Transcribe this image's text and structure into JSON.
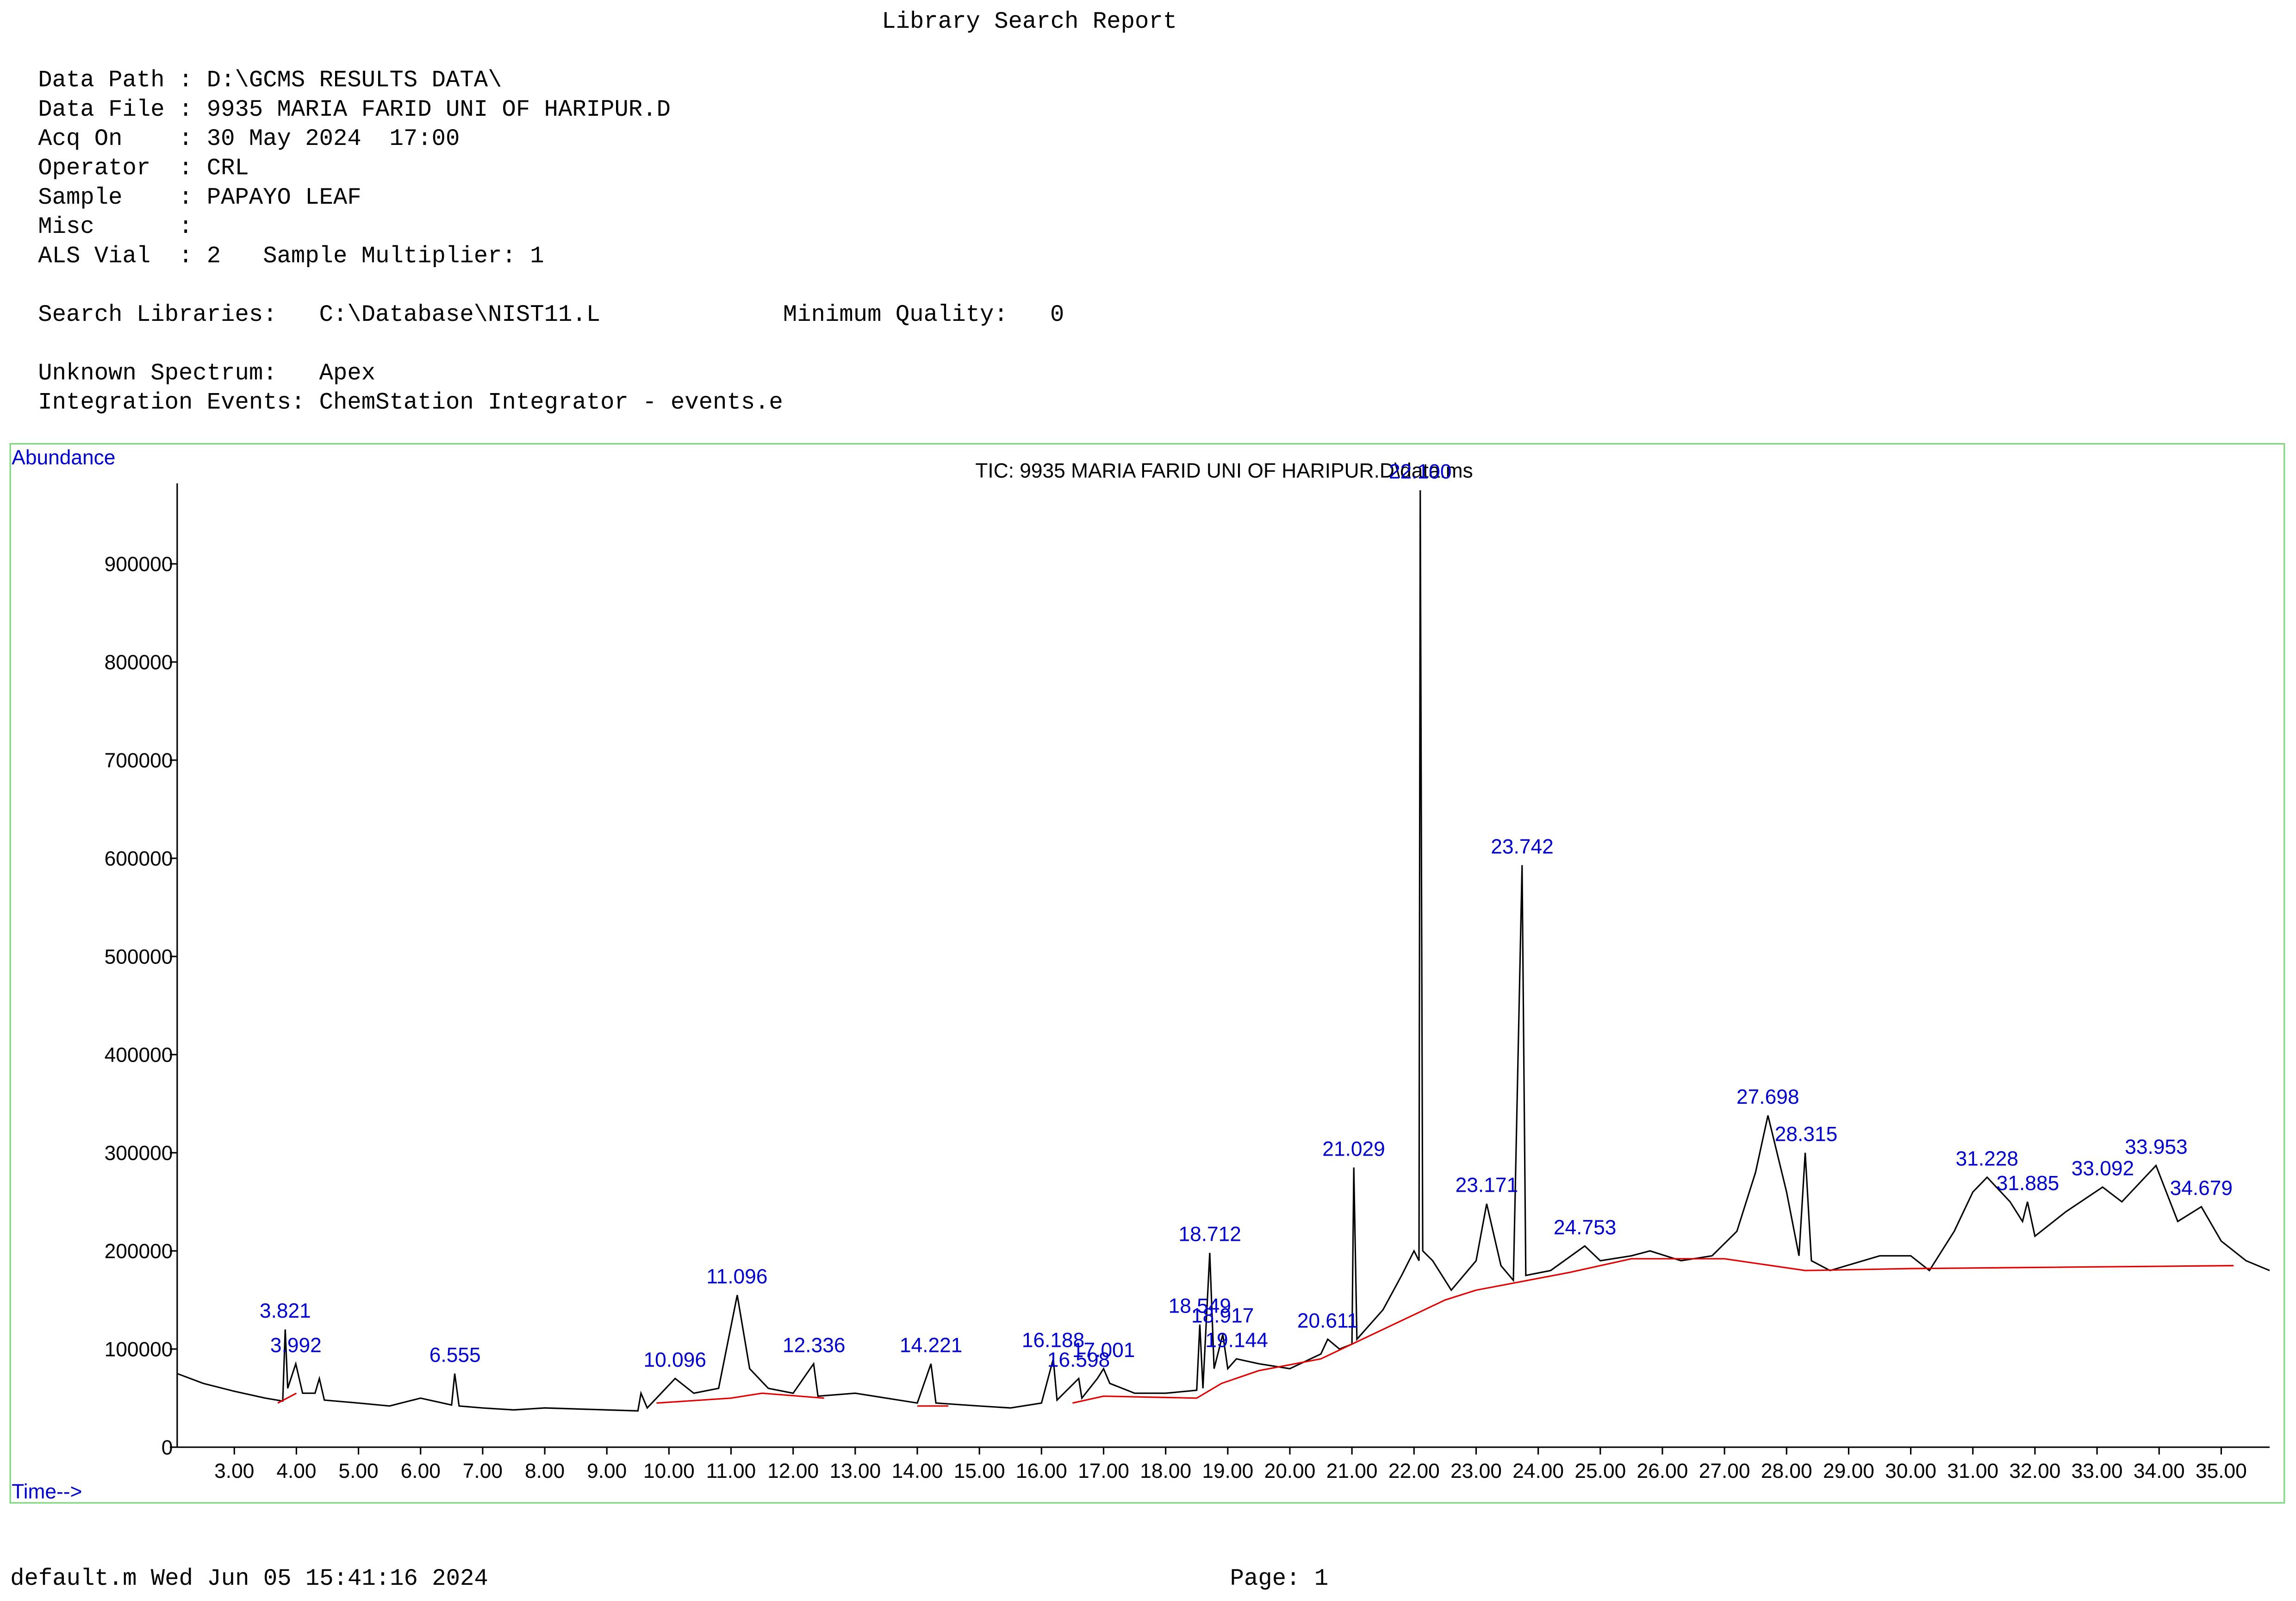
{
  "document": {
    "title": "Library Search Report",
    "lines": [
      "Data Path : D:\\GCMS RESULTS DATA\\",
      "Data File : 9935 MARIA FARID UNI OF HARIPUR.D",
      "Acq On    : 30 May 2024  17:00",
      "Operator  : CRL",
      "Sample    : PAPAYO LEAF",
      "Misc      :",
      "ALS Vial  : 2   Sample Multiplier: 1"
    ],
    "search_line": "Search Libraries:   C:\\Database\\NIST11.L             Minimum Quality:   0",
    "spectrum_lines": [
      "Unknown Spectrum:   Apex",
      "Integration Events: ChemStation Integrator - events.e"
    ],
    "footer_left": "default.m Wed Jun 05 15:41:16 2024",
    "footer_right": "Page: 1"
  },
  "chart_data": {
    "type": "line",
    "title": "TIC: 9935 MARIA FARID UNI OF HARIPUR.D\\data.ms",
    "y_label": "Abundance",
    "x_label": "Time-->",
    "xlim": [
      2.08,
      35.78
    ],
    "ylim": [
      0,
      982000
    ],
    "xticks": [
      {
        "value": 3,
        "label": "3.00"
      },
      {
        "value": 4,
        "label": "4.00"
      },
      {
        "value": 5,
        "label": "5.00"
      },
      {
        "value": 6,
        "label": "6.00"
      },
      {
        "value": 7,
        "label": "7.00"
      },
      {
        "value": 8,
        "label": "8.00"
      },
      {
        "value": 9,
        "label": "9.00"
      },
      {
        "value": 10,
        "label": "10.00"
      },
      {
        "value": 11,
        "label": "11.00"
      },
      {
        "value": 12,
        "label": "12.00"
      },
      {
        "value": 13,
        "label": "13.00"
      },
      {
        "value": 14,
        "label": "14.00"
      },
      {
        "value": 15,
        "label": "15.00"
      },
      {
        "value": 16,
        "label": "16.00"
      },
      {
        "value": 17,
        "label": "17.00"
      },
      {
        "value": 18,
        "label": "18.00"
      },
      {
        "value": 19,
        "label": "19.00"
      },
      {
        "value": 20,
        "label": "20.00"
      },
      {
        "value": 21,
        "label": "21.00"
      },
      {
        "value": 22,
        "label": "22.00"
      },
      {
        "value": 23,
        "label": "23.00"
      },
      {
        "value": 24,
        "label": "24.00"
      },
      {
        "value": 25,
        "label": "25.00"
      },
      {
        "value": 26,
        "label": "26.00"
      },
      {
        "value": 27,
        "label": "27.00"
      },
      {
        "value": 28,
        "label": "28.00"
      },
      {
        "value": 29,
        "label": "29.00"
      },
      {
        "value": 30,
        "label": "30.00"
      },
      {
        "value": 31,
        "label": "31.00"
      },
      {
        "value": 32,
        "label": "32.00"
      },
      {
        "value": 33,
        "label": "33.00"
      },
      {
        "value": 34,
        "label": "34.00"
      },
      {
        "value": 35,
        "label": "35.00"
      }
    ],
    "yticks": [
      0,
      100000,
      200000,
      300000,
      400000,
      500000,
      600000,
      700000,
      800000,
      900000
    ],
    "series": [
      {
        "color": "#000000",
        "x": [
          2.08,
          2.5,
          3.0,
          3.5,
          3.78,
          3.82,
          3.86,
          3.99,
          4.1,
          4.3,
          4.37,
          4.45,
          5.0,
          5.5,
          6.0,
          6.5,
          6.55,
          6.62,
          7.0,
          7.5,
          8.0,
          9.0,
          9.5,
          9.55,
          9.65,
          10.1,
          10.4,
          10.8,
          11.1,
          11.3,
          11.6,
          12.0,
          12.33,
          12.4,
          13.0,
          13.5,
          14.0,
          14.22,
          14.3,
          15.0,
          15.5,
          16.0,
          16.19,
          16.25,
          16.6,
          16.65,
          16.9,
          17.0,
          17.1,
          17.5,
          18.0,
          18.5,
          18.55,
          18.6,
          18.71,
          18.78,
          18.92,
          19.0,
          19.14,
          19.5,
          20.0,
          20.5,
          20.61,
          20.8,
          21.0,
          21.03,
          21.08,
          21.5,
          21.8,
          22.0,
          22.08,
          22.1,
          22.14,
          22.3,
          22.6,
          23.0,
          23.17,
          23.4,
          23.6,
          23.74,
          23.8,
          24.2,
          24.75,
          25.0,
          25.5,
          25.8,
          26.3,
          26.8,
          27.2,
          27.5,
          27.7,
          28.0,
          28.2,
          28.3,
          28.4,
          28.7,
          29.5,
          30.0,
          30.3,
          30.7,
          31.0,
          31.23,
          31.6,
          31.8,
          31.88,
          32.0,
          32.5,
          33.09,
          33.4,
          33.95,
          34.3,
          34.68,
          35.0,
          35.4,
          35.78
        ],
        "values": [
          75000,
          65000,
          57000,
          50000,
          47000,
          120000,
          60000,
          85000,
          55000,
          55000,
          70000,
          48000,
          45000,
          42000,
          50000,
          43000,
          75000,
          42000,
          40000,
          38000,
          40000,
          38000,
          37000,
          55000,
          40000,
          70000,
          55000,
          60000,
          155000,
          80000,
          60000,
          55000,
          85000,
          52000,
          55000,
          50000,
          45000,
          85000,
          45000,
          42000,
          40000,
          45000,
          90000,
          48000,
          70000,
          50000,
          70000,
          80000,
          65000,
          55000,
          55000,
          58000,
          125000,
          60000,
          198000,
          80000,
          115000,
          80000,
          90000,
          85000,
          80000,
          95000,
          110000,
          100000,
          105000,
          285000,
          110000,
          140000,
          175000,
          200000,
          190000,
          975000,
          200000,
          190000,
          160000,
          190000,
          248000,
          185000,
          170000,
          593000,
          175000,
          180000,
          205000,
          190000,
          195000,
          200000,
          190000,
          195000,
          220000,
          280000,
          338000,
          260000,
          195000,
          300000,
          190000,
          180000,
          195000,
          195000,
          180000,
          220000,
          260000,
          275000,
          250000,
          230000,
          250000,
          215000,
          240000,
          265000,
          250000,
          287000,
          230000,
          245000,
          210000,
          190000,
          180000
        ]
      },
      {
        "color": "#e00000",
        "x": [
          3.7,
          4.0,
          null,
          9.8,
          11.0,
          11.5,
          12.5,
          null,
          14.0,
          14.5,
          null,
          16.5,
          17.0,
          18.5,
          18.9,
          19.5,
          20.5,
          21.5,
          22.5,
          23.0,
          24.5,
          25.5,
          27.0,
          28.3,
          30.0,
          35.2
        ],
        "values": [
          45000,
          55000,
          null,
          45000,
          50000,
          55000,
          50000,
          null,
          42000,
          42000,
          null,
          45000,
          52000,
          50000,
          65000,
          78000,
          90000,
          120000,
          150000,
          160000,
          178000,
          192000,
          192000,
          180000,
          182000,
          185000
        ]
      }
    ],
    "peaks": {
      "color": "#0000cc",
      "labels": [
        "3.821",
        "3.992",
        "6.555",
        "10.096",
        "11.096",
        "12.336",
        "14.221",
        "16.188",
        "16.598",
        "17.001",
        "18.549",
        "18.712",
        "18.917",
        "19.144",
        "20.611",
        "21.029",
        "22.100",
        "23.171",
        "23.742",
        "24.753",
        "27.698",
        "28.315",
        "31.228",
        "31.885",
        "33.092",
        "33.953",
        "34.679"
      ],
      "x": [
        3.821,
        3.992,
        6.555,
        10.096,
        11.096,
        12.336,
        14.221,
        16.188,
        16.598,
        17.001,
        18.549,
        18.712,
        18.917,
        19.144,
        20.611,
        21.029,
        22.1,
        23.171,
        23.742,
        24.753,
        27.698,
        28.315,
        31.228,
        31.885,
        33.092,
        33.953,
        34.679
      ],
      "values": [
        120000,
        85000,
        75000,
        70000,
        155000,
        85000,
        85000,
        90000,
        70000,
        80000,
        125000,
        198000,
        115000,
        90000,
        110000,
        285000,
        975000,
        248000,
        593000,
        205000,
        338000,
        300000,
        275000,
        250000,
        265000,
        287000,
        245000
      ]
    }
  }
}
